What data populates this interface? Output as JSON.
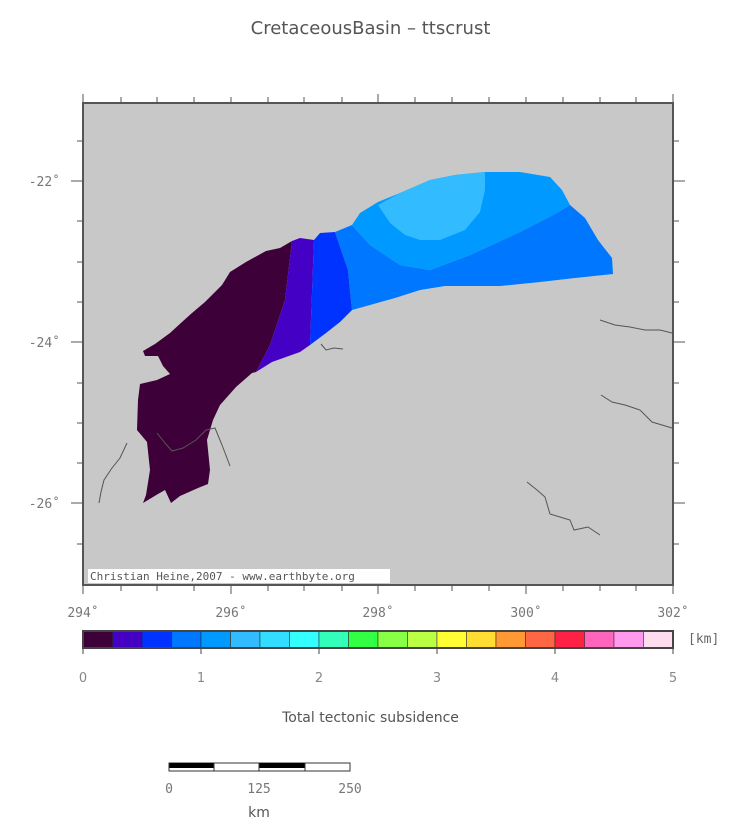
{
  "title": "CretaceousBasin – ttscrust",
  "map": {
    "lat_labels": [
      "-22˚",
      "-24˚",
      "-26˚"
    ],
    "lon_labels": [
      "294˚",
      "296˚",
      "298˚",
      "300˚",
      "302˚"
    ],
    "credit": "Christian Heine,2007 - www.earthbyte.org",
    "background_color": "#c8c8c8"
  },
  "colorbar": {
    "label": "Total tectonic subsidence",
    "units": "[km]",
    "tick_labels": [
      "0",
      "1",
      "2",
      "3",
      "4",
      "5"
    ],
    "colors": [
      "#3d0038",
      "#4400c4",
      "#0033ff",
      "#0077ff",
      "#0099ff",
      "#33bbff",
      "#33ddff",
      "#33ffff",
      "#33ffbb",
      "#33ff44",
      "#88ff44",
      "#bbff44",
      "#ffff33",
      "#ffdd33",
      "#ff9933",
      "#ff6644",
      "#ff2244",
      "#ff66bb",
      "#ff99ee",
      "#ffddee"
    ]
  },
  "scalebar": {
    "ticks": [
      "0",
      "125",
      "250"
    ],
    "unit": "km"
  }
}
